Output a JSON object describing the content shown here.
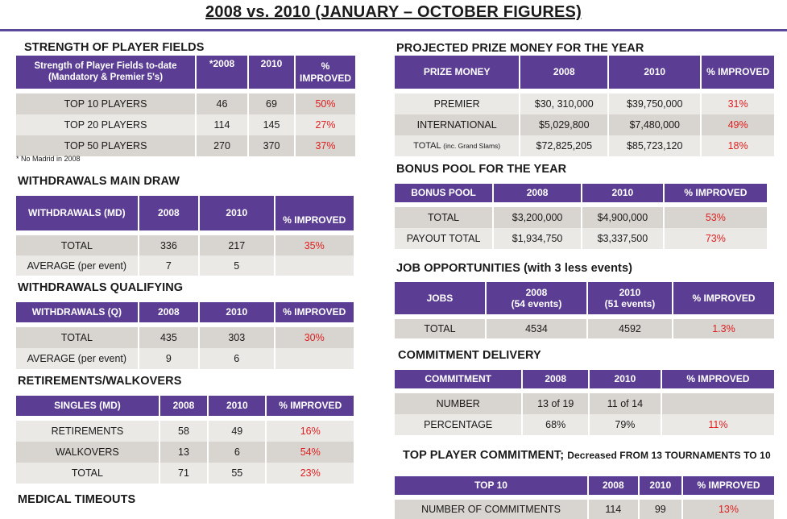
{
  "title": "2008 vs. 2010 (JANUARY – OCTOBER FIGURES)",
  "left": {
    "strength": {
      "heading": "STRENGTH OF PLAYER FIELDS",
      "headers": [
        "Strength of Player Fields to-date (Mandatory & Premier 5's)",
        "*2008",
        "2010",
        "% IMPROVED"
      ],
      "rows": [
        [
          "TOP 10 PLAYERS",
          "46",
          "69",
          "50%"
        ],
        [
          "TOP 20 PLAYERS",
          "114",
          "145",
          "27%"
        ],
        [
          "TOP 50 PLAYERS",
          "270",
          "370",
          "37%"
        ]
      ],
      "footnote": "* No Madrid in 2008"
    },
    "withdrawals_md": {
      "heading": "WITHDRAWALS MAIN DRAW",
      "headers": [
        "WITHDRAWALS (MD)",
        "2008",
        "2010",
        "% IMPROVED"
      ],
      "rows": [
        [
          "TOTAL",
          "336",
          "217",
          "35%"
        ],
        [
          "AVERAGE (per event)",
          "7",
          "5",
          ""
        ]
      ]
    },
    "withdrawals_q": {
      "heading": "WITHDRAWALS QUALIFYING",
      "headers": [
        "WITHDRAWALS (Q)",
        "2008",
        "2010",
        "% IMPROVED"
      ],
      "rows": [
        [
          "TOTAL",
          "435",
          "303",
          "30%"
        ],
        [
          "AVERAGE (per event)",
          "9",
          "6",
          ""
        ]
      ]
    },
    "retirements": {
      "heading": "RETIREMENTS/WALKOVERS",
      "headers": [
        "SINGLES (MD)",
        "2008",
        "2010",
        "% IMPROVED"
      ],
      "rows": [
        [
          "RETIREMENTS",
          "58",
          "49",
          "16%"
        ],
        [
          "WALKOVERS",
          "13",
          "6",
          "54%"
        ],
        [
          "TOTAL",
          "71",
          "55",
          "23%"
        ]
      ]
    },
    "medical": {
      "heading": "MEDICAL TIMEOUTS"
    }
  },
  "right": {
    "prize": {
      "heading": "PROJECTED PRIZE MONEY FOR THE YEAR",
      "headers": [
        "PRIZE MONEY",
        "2008",
        "2010",
        "% IMPROVED"
      ],
      "rows": [
        [
          "PREMIER",
          "$30, 310,000",
          "$39,750,000",
          "31%"
        ],
        [
          "INTERNATIONAL",
          "$5,029,800",
          "$7,480,000",
          "49%"
        ],
        [
          "TOTAL",
          "$72,825,205",
          "$85,723,120",
          "18%"
        ]
      ],
      "total_note": "(inc. Grand Slams)"
    },
    "bonus": {
      "heading": "BONUS POOL FOR THE YEAR",
      "headers": [
        "BONUS POOL",
        "2008",
        "2010",
        "% IMPROVED"
      ],
      "rows": [
        [
          "TOTAL",
          "$3,200,000",
          "$4,900,000",
          "53%"
        ],
        [
          "PAYOUT TOTAL",
          "$1,934,750",
          "$3,337,500",
          "73%"
        ]
      ]
    },
    "jobs": {
      "heading": "JOB OPPORTUNITIES (with 3 less events)",
      "headers": [
        "JOBS",
        "2008",
        "2010",
        "% IMPROVED"
      ],
      "subheaders": [
        "(54 events)",
        "(51 events)"
      ],
      "rows": [
        [
          "TOTAL",
          "4534",
          "4592",
          "1.3%"
        ]
      ]
    },
    "commitment": {
      "heading": "COMMITMENT DELIVERY",
      "headers": [
        "COMMITMENT",
        "2008",
        "2010",
        "% IMPROVED"
      ],
      "rows": [
        [
          "NUMBER",
          "13 of 19",
          "11 of 14",
          ""
        ],
        [
          "PERCENTAGE",
          "68%",
          "79%",
          "11%"
        ]
      ]
    },
    "top_player": {
      "heading": "TOP PLAYER COMMITMENT;",
      "heading_note": "Decreased  FROM 13 TOURNAMENTS TO 10",
      "headers": [
        "TOP 10",
        "2008",
        "2010",
        "% IMPROVED"
      ],
      "rows": [
        [
          "NUMBER OF COMMITMENTS",
          "114",
          "99",
          "13%"
        ]
      ]
    }
  }
}
